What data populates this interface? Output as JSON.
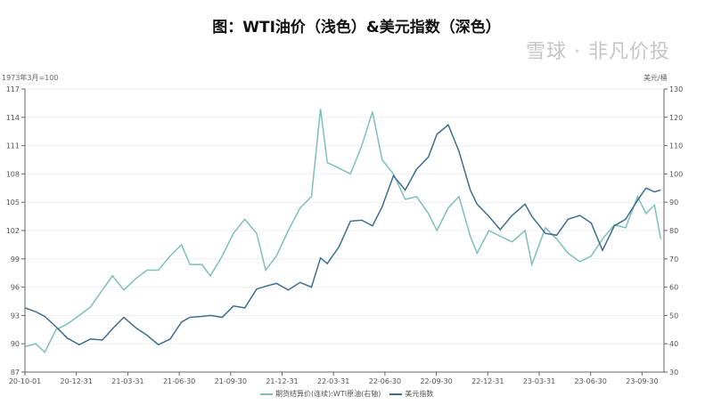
{
  "title": "图：WTI油价（浅色）&美元指数（深色）",
  "watermark": "雪球 · 非凡价投",
  "chart_data": {
    "type": "line",
    "title": "图：WTI油价（浅色）&美元指数（深色）",
    "left_axis": {
      "label": "1973年3月=100",
      "range": [
        87,
        117
      ],
      "ticks": [
        87,
        90,
        93,
        96,
        99,
        102,
        105,
        108,
        111,
        114,
        117
      ]
    },
    "right_axis": {
      "label": "美元/桶",
      "range": [
        30,
        130
      ],
      "ticks": [
        30,
        40,
        50,
        60,
        70,
        80,
        90,
        100,
        110,
        120,
        130
      ]
    },
    "x_ticks": [
      "20-10-01",
      "20-12-31",
      "21-03-31",
      "21-06-30",
      "21-09-30",
      "21-12-31",
      "22-03-31",
      "22-06-30",
      "22-09-30",
      "22-12-31",
      "23-03-31",
      "23-06-30",
      "23-09-30"
    ],
    "x_range": [
      "2020-10-01",
      "2023-10-31"
    ],
    "grid": true,
    "legend_position": "bottom",
    "series": [
      {
        "name": "期货结算价(连续):WTI原油(右轴)",
        "axis": "right",
        "color": "#7fbfb9",
        "x": [
          "2020-10-01",
          "2020-10-20",
          "2020-11-05",
          "2020-11-25",
          "2020-12-15",
          "2021-01-05",
          "2021-01-25",
          "2021-02-15",
          "2021-03-05",
          "2021-03-25",
          "2021-04-15",
          "2021-05-05",
          "2021-05-25",
          "2021-06-15",
          "2021-07-05",
          "2021-07-20",
          "2021-08-10",
          "2021-08-25",
          "2021-09-15",
          "2021-10-05",
          "2021-10-25",
          "2021-11-15",
          "2021-12-01",
          "2021-12-20",
          "2022-01-10",
          "2022-01-31",
          "2022-02-20",
          "2022-03-08",
          "2022-03-20",
          "2022-04-10",
          "2022-04-30",
          "2022-05-20",
          "2022-06-08",
          "2022-06-25",
          "2022-07-15",
          "2022-08-05",
          "2022-08-25",
          "2022-09-15",
          "2022-09-30",
          "2022-10-20",
          "2022-11-08",
          "2022-11-28",
          "2022-12-10",
          "2022-12-31",
          "2023-01-20",
          "2023-02-10",
          "2023-03-05",
          "2023-03-17",
          "2023-04-10",
          "2023-04-30",
          "2023-05-20",
          "2023-06-10",
          "2023-06-30",
          "2023-07-20",
          "2023-08-10",
          "2023-08-30",
          "2023-09-20",
          "2023-10-05",
          "2023-10-20",
          "2023-10-31"
        ],
        "values": [
          39,
          40,
          37,
          45,
          47,
          50,
          53,
          59,
          64,
          59,
          63,
          66,
          66,
          71,
          75,
          68,
          68,
          64,
          71,
          79,
          84,
          79,
          66,
          71,
          80,
          88,
          92,
          123,
          104,
          102,
          100,
          110,
          122,
          105,
          100,
          91,
          92,
          86,
          80,
          88,
          92,
          78,
          72,
          80,
          78,
          76,
          80,
          68,
          81,
          77,
          72,
          69,
          71,
          77,
          82,
          81,
          92,
          86,
          89,
          77
        ]
      },
      {
        "name": "美元指数",
        "axis": "left",
        "color": "#3d6e8f",
        "x": [
          "2020-10-01",
          "2020-10-20",
          "2020-11-05",
          "2020-11-25",
          "2020-12-15",
          "2021-01-05",
          "2021-01-25",
          "2021-02-15",
          "2021-03-05",
          "2021-03-25",
          "2021-04-15",
          "2021-05-05",
          "2021-05-25",
          "2021-06-15",
          "2021-07-05",
          "2021-07-20",
          "2021-08-10",
          "2021-08-25",
          "2021-09-15",
          "2021-10-05",
          "2021-10-25",
          "2021-11-15",
          "2021-12-01",
          "2021-12-20",
          "2022-01-10",
          "2022-01-31",
          "2022-02-20",
          "2022-03-08",
          "2022-03-20",
          "2022-04-10",
          "2022-04-30",
          "2022-05-20",
          "2022-06-08",
          "2022-06-25",
          "2022-07-15",
          "2022-08-05",
          "2022-08-25",
          "2022-09-15",
          "2022-09-30",
          "2022-10-20",
          "2022-11-08",
          "2022-11-28",
          "2022-12-10",
          "2022-12-31",
          "2023-01-20",
          "2023-02-10",
          "2023-03-05",
          "2023-03-17",
          "2023-04-10",
          "2023-04-30",
          "2023-05-20",
          "2023-06-10",
          "2023-06-30",
          "2023-07-20",
          "2023-08-10",
          "2023-08-30",
          "2023-09-20",
          "2023-10-05",
          "2023-10-20",
          "2023-10-31"
        ],
        "values": [
          93.8,
          93.4,
          92.9,
          91.8,
          90.6,
          89.9,
          90.5,
          90.4,
          91.6,
          92.8,
          91.7,
          90.9,
          89.9,
          90.5,
          92.3,
          92.8,
          92.9,
          93.0,
          92.8,
          94.0,
          93.8,
          95.8,
          96.1,
          96.4,
          95.7,
          96.5,
          96.0,
          99.1,
          98.5,
          100.3,
          103.0,
          103.1,
          102.5,
          104.5,
          107.8,
          106.3,
          108.5,
          109.8,
          112.2,
          113.2,
          110.4,
          106.3,
          104.8,
          103.5,
          102.1,
          103.6,
          104.8,
          103.5,
          101.7,
          101.5,
          103.2,
          103.6,
          102.8,
          99.9,
          102.5,
          103.2,
          105.2,
          106.5,
          106.1,
          106.3
        ]
      }
    ]
  }
}
